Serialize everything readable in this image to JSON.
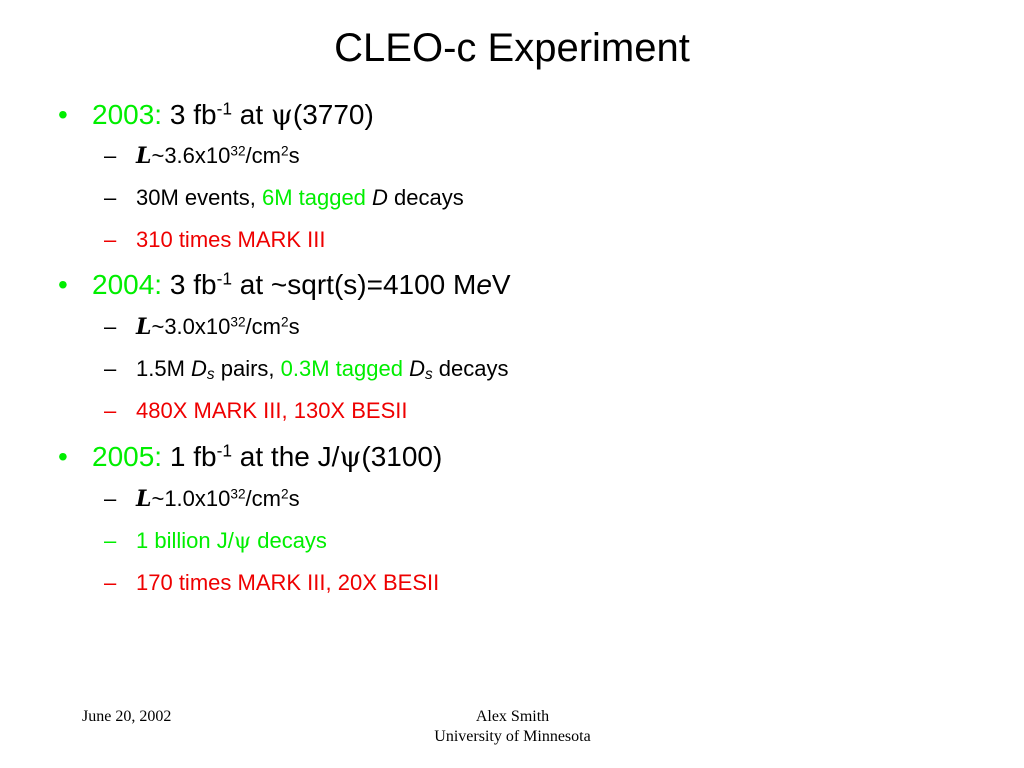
{
  "title": "CLEO-c Experiment",
  "bullet_glyph": "•",
  "dash_glyph": "–",
  "lum_glyph": "L",
  "colors": {
    "green": "#00ee00",
    "red": "#ee0000"
  },
  "b1": {
    "year": "2003:",
    "lumi": " 3 fb",
    "exp": "-1",
    "at": " at ",
    "psi": "ψ",
    "rest": "(3770)",
    "s1_a": "~3.6x10",
    "s1_exp": "32",
    "s1_b": "/cm",
    "s1_exp2": "2",
    "s1_c": "s",
    "s2_a": "30M events, ",
    "s2_green": "6M tagged ",
    "s2_D": "D",
    "s2_c": " decays",
    "s3": "310 times MARK III"
  },
  "b2": {
    "year": "2004:",
    "lumi": " 3 fb",
    "exp": "-1",
    "at": " at ~sqrt(s)=4100 M",
    "e": "e",
    "V": "V",
    "s1_a": "~3.0x10",
    "s1_exp": "32",
    "s1_b": "/cm",
    "s1_exp2": "2",
    "s1_c": "s",
    "s2_a": "1.5M ",
    "s2_D": "D",
    "s2_s": "s",
    "s2_b": " pairs, ",
    "s2_green": "0.3M tagged ",
    "s2_D2": "D",
    "s2_s2": "s",
    "s2_c": " decays",
    "s3": "480X MARK III, 130X BESII"
  },
  "b3": {
    "year": "2005:",
    "lumi": " 1 fb",
    "exp": "-1",
    "at": " at the J/",
    "psi": "ψ",
    "rest": "(3100)",
    "s1_a": "~1.0x10",
    "s1_exp": "32",
    "s1_b": "/cm",
    "s1_exp2": "2",
    "s1_c": "s",
    "s2_a": "1 billion J/",
    "s2_psi": "ψ",
    "s2_b": " decays",
    "s3": "170 times MARK III, 20X BESII"
  },
  "footer": {
    "date": "June 20, 2002",
    "author": "Alex Smith",
    "affiliation": "University of Minnesota"
  }
}
